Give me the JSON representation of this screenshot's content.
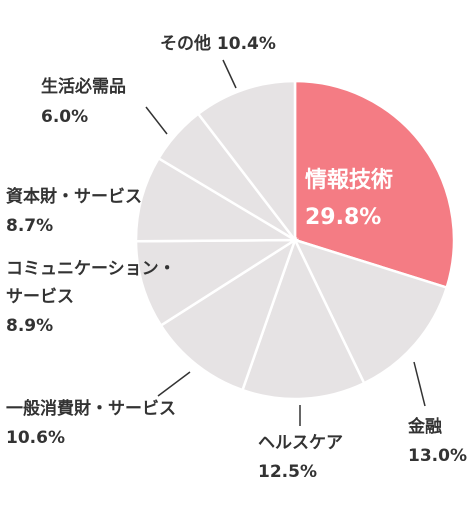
{
  "chart_data": {
    "type": "pie",
    "slices": [
      {
        "label": "情報技術",
        "value": 29.8,
        "value_text": "29.8%",
        "color": "#f47c84",
        "highlight": true
      },
      {
        "label": "金融",
        "value": 13.0,
        "value_text": "13.0%",
        "color": "#e6e3e4"
      },
      {
        "label": "ヘルスケア",
        "value": 12.5,
        "value_text": "12.5%",
        "color": "#e6e3e4"
      },
      {
        "label": "一般消費財・サービス",
        "value": 10.6,
        "value_text": "10.6%",
        "color": "#e6e3e4"
      },
      {
        "label": "コミュニケーション・サービス",
        "label_lines": [
          "コミュニケーション・",
          "サービス"
        ],
        "value": 8.9,
        "value_text": "8.9%",
        "color": "#e6e3e4"
      },
      {
        "label": "資本財・サービス",
        "value": 8.7,
        "value_text": "8.7%",
        "color": "#e6e3e4"
      },
      {
        "label": "生活必需品",
        "value": 6.0,
        "value_text": "6.0%",
        "color": "#e6e3e4"
      },
      {
        "label": "その他",
        "value": 10.4,
        "value_text": "10.4%",
        "color": "#e6e3e4"
      }
    ],
    "start": "12 o'clock",
    "direction": "clockwise",
    "slice_border_color": "#ffffff"
  }
}
